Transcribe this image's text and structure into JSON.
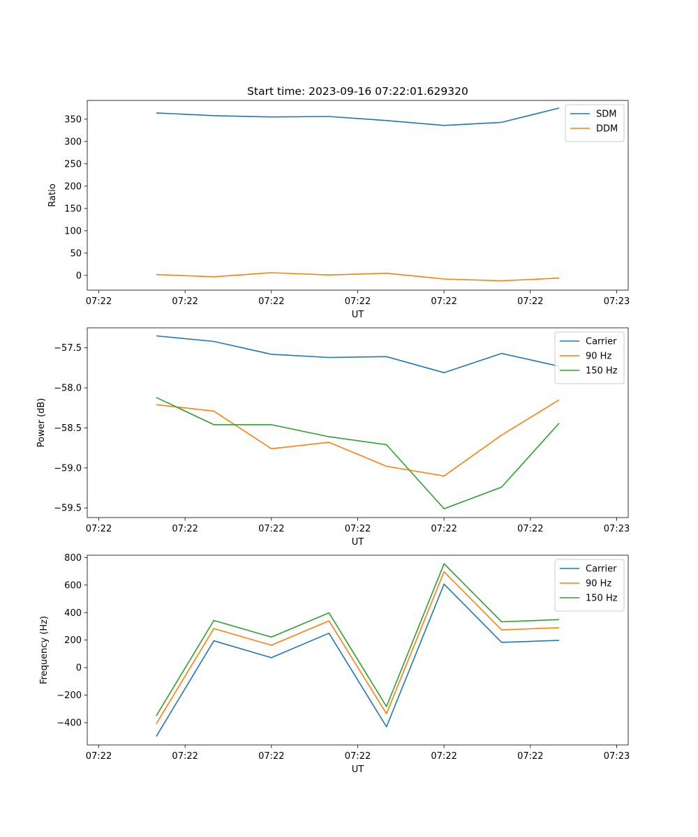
{
  "figure_title": "Start time: 2023-09-16 07:22:01.629320",
  "chart_data": [
    {
      "type": "line",
      "title": "Start time: 2023-09-16 07:22:01.629320",
      "xlabel": "UT",
      "ylabel": "Ratio",
      "x_tick_labels": [
        "07:22",
        "07:22",
        "07:22",
        "07:22",
        "07:22",
        "07:22",
        "07:23"
      ],
      "yticks": [
        0,
        50,
        100,
        150,
        200,
        250,
        300,
        350
      ],
      "ylim": [
        -33,
        392
      ],
      "x": [
        1,
        2,
        3,
        4,
        5,
        6,
        7,
        8
      ],
      "xlim": [
        -0.2,
        9.2
      ],
      "x_tick_positions": [
        0,
        1.5,
        3,
        4.5,
        6,
        7.5,
        9
      ],
      "legend_loc": "upper right",
      "series": [
        {
          "name": "SDM",
          "color": "#1f77b4",
          "values": [
            364,
            358,
            355,
            356,
            347,
            336,
            343,
            375
          ]
        },
        {
          "name": "DDM",
          "color": "#ff7f0e",
          "values": [
            2,
            -3,
            6,
            1,
            5,
            -8,
            -12,
            -6
          ]
        }
      ]
    },
    {
      "type": "line",
      "title": "",
      "xlabel": "UT",
      "ylabel": "Power (dB)",
      "x_tick_labels": [
        "07:22",
        "07:22",
        "07:22",
        "07:22",
        "07:22",
        "07:22",
        "07:23"
      ],
      "yticks": [
        -59.5,
        -59.0,
        -58.5,
        -58.0,
        -57.5
      ],
      "ytick_labels": [
        "−59.5",
        "−59.0",
        "−58.5",
        "−58.0",
        "−57.5"
      ],
      "ylim": [
        -59.62,
        -57.25
      ],
      "x": [
        1,
        2,
        3,
        4,
        5,
        6,
        7,
        8
      ],
      "xlim": [
        -0.2,
        9.2
      ],
      "x_tick_positions": [
        0,
        1.5,
        3,
        4.5,
        6,
        7.5,
        9
      ],
      "legend_loc": "upper right",
      "series": [
        {
          "name": "Carrier",
          "color": "#1f77b4",
          "values": [
            -57.35,
            -57.42,
            -57.58,
            -57.62,
            -57.61,
            -57.81,
            -57.57,
            -57.73
          ]
        },
        {
          "name": "90 Hz",
          "color": "#ff7f0e",
          "values": [
            -58.21,
            -58.29,
            -58.76,
            -58.68,
            -58.98,
            -59.1,
            -58.59,
            -58.15
          ]
        },
        {
          "name": "150 Hz",
          "color": "#2ca02c",
          "values": [
            -58.12,
            -58.46,
            -58.46,
            -58.61,
            -58.71,
            -59.51,
            -59.24,
            -58.44
          ]
        }
      ]
    },
    {
      "type": "line",
      "title": "",
      "xlabel": "UT",
      "ylabel": "Frequency (Hz)",
      "x_tick_labels": [
        "07:22",
        "07:22",
        "07:22",
        "07:22",
        "07:22",
        "07:22",
        "07:23"
      ],
      "yticks": [
        -400,
        -200,
        0,
        200,
        400,
        600,
        800
      ],
      "ytick_labels": [
        "−400",
        "−200",
        "0",
        "200",
        "400",
        "600",
        "800"
      ],
      "ylim": [
        -562,
        817
      ],
      "x": [
        1,
        2,
        3,
        4,
        5,
        6,
        7,
        8
      ],
      "xlim": [
        -0.2,
        9.2
      ],
      "x_tick_positions": [
        0,
        1.5,
        3,
        4.5,
        6,
        7.5,
        9
      ],
      "legend_loc": "upper right",
      "series": [
        {
          "name": "Carrier",
          "color": "#1f77b4",
          "values": [
            -500,
            195,
            72,
            250,
            -430,
            607,
            184,
            198
          ]
        },
        {
          "name": "90 Hz",
          "color": "#ff7f0e",
          "values": [
            -408,
            284,
            163,
            340,
            -335,
            697,
            274,
            290
          ]
        },
        {
          "name": "150 Hz",
          "color": "#2ca02c",
          "values": [
            -350,
            343,
            222,
            398,
            -283,
            755,
            333,
            349
          ]
        }
      ]
    }
  ]
}
